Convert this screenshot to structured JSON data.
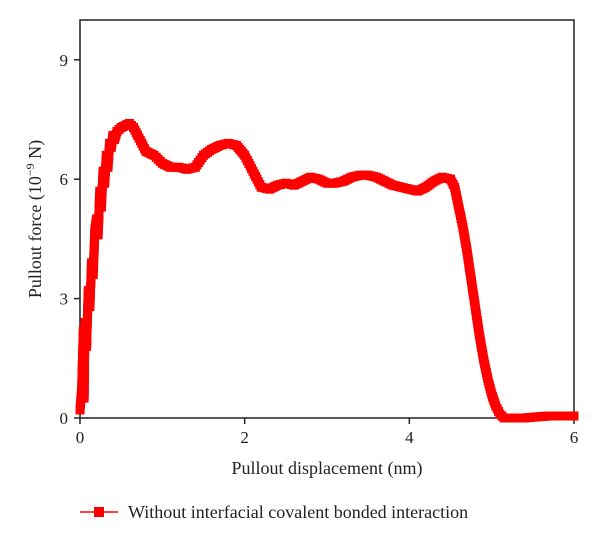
{
  "chart_data": {
    "type": "line",
    "title": "",
    "xlabel": "Pullout displacement (nm)",
    "ylabel_main": "Pullout force (10",
    "ylabel_exp": "−9",
    "ylabel_tail": " N)",
    "xlim": [
      0,
      6
    ],
    "ylim": [
      0,
      10
    ],
    "xticks": [
      "0",
      "2",
      "4",
      "6"
    ],
    "yticks": [
      "0",
      "3",
      "6",
      "9"
    ],
    "grid": false,
    "legend_position": "bottom",
    "series": [
      {
        "name": "Without interfacial covalent bonded interaction",
        "color": "#ff0000",
        "marker": "square",
        "x": [
          0.0,
          0.02,
          0.04,
          0.05,
          0.06,
          0.08,
          0.1,
          0.12,
          0.14,
          0.16,
          0.18,
          0.2,
          0.22,
          0.24,
          0.26,
          0.28,
          0.3,
          0.32,
          0.34,
          0.36,
          0.38,
          0.4,
          0.42,
          0.45,
          0.5,
          0.55,
          0.6,
          0.65,
          0.7,
          0.75,
          0.8,
          0.9,
          1.0,
          1.1,
          1.2,
          1.3,
          1.4,
          1.5,
          1.6,
          1.7,
          1.8,
          1.9,
          2.0,
          2.1,
          2.2,
          2.3,
          2.4,
          2.5,
          2.6,
          2.7,
          2.8,
          2.9,
          3.0,
          3.1,
          3.2,
          3.3,
          3.4,
          3.5,
          3.6,
          3.7,
          3.8,
          3.9,
          4.0,
          4.1,
          4.2,
          4.3,
          4.4,
          4.5,
          4.55,
          4.6,
          4.65,
          4.7,
          4.75,
          4.8,
          4.85,
          4.9,
          4.95,
          5.0,
          5.05,
          5.1,
          5.15,
          5.2,
          5.25,
          5.3,
          5.35,
          5.4,
          5.5,
          5.7,
          5.9,
          6.0
        ],
        "y": [
          0.2,
          0.7,
          2.2,
          0.5,
          2.4,
          1.8,
          3.2,
          2.8,
          3.9,
          3.6,
          4.7,
          5.0,
          4.6,
          5.7,
          5.3,
          6.2,
          5.9,
          6.6,
          6.3,
          6.9,
          6.8,
          7.1,
          7.0,
          7.2,
          7.3,
          7.35,
          7.4,
          7.3,
          7.1,
          6.9,
          6.7,
          6.6,
          6.4,
          6.3,
          6.3,
          6.25,
          6.3,
          6.6,
          6.75,
          6.85,
          6.9,
          6.85,
          6.6,
          6.2,
          5.8,
          5.75,
          5.85,
          5.9,
          5.85,
          5.95,
          6.05,
          6.0,
          5.9,
          5.9,
          5.95,
          6.05,
          6.1,
          6.1,
          6.05,
          5.95,
          5.85,
          5.8,
          5.75,
          5.7,
          5.8,
          5.95,
          6.05,
          6.0,
          5.8,
          5.3,
          4.8,
          4.2,
          3.5,
          2.8,
          2.1,
          1.5,
          1.0,
          0.6,
          0.3,
          0.1,
          0.0,
          0.0,
          0.0,
          0.0,
          0.0,
          0.0,
          0.02,
          0.05,
          0.05,
          0.05
        ]
      }
    ]
  }
}
